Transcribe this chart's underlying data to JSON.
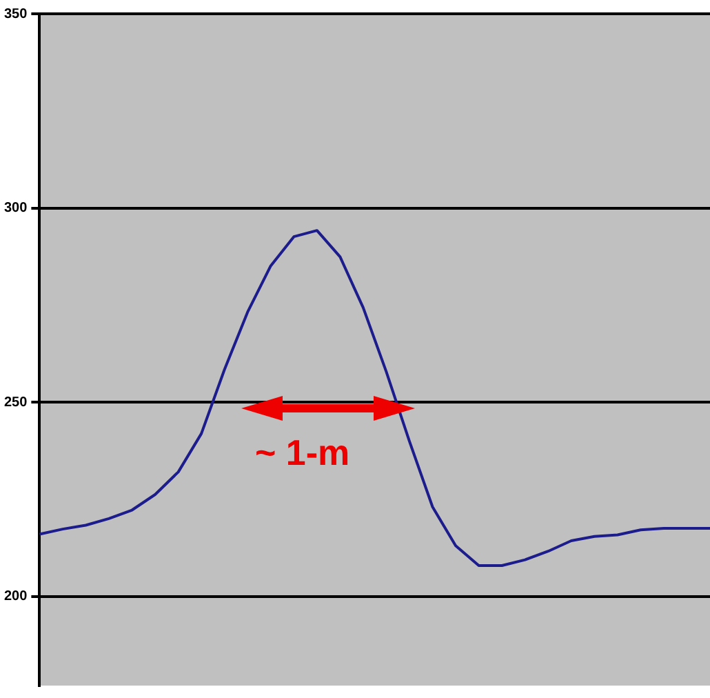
{
  "chart_data": {
    "type": "line",
    "categories": [
      null,
      null,
      null,
      null,
      null,
      null,
      null,
      null,
      null,
      null,
      null,
      null,
      null,
      null,
      null,
      null,
      null,
      null,
      null,
      null,
      null,
      null,
      null,
      null,
      null,
      null,
      null,
      null,
      null,
      null
    ],
    "series": [
      {
        "color": "#1c1c8c",
        "values": [
          216.0,
          217.3,
          218.3,
          220.0,
          222.2,
          226.2,
          232.0,
          241.9,
          258.4,
          273.2,
          285.1,
          292.6,
          294.2,
          287.4,
          274.3,
          257.8,
          239.9,
          223.0,
          213.0,
          207.9,
          207.9,
          209.4,
          211.6,
          214.3,
          215.4,
          215.8,
          217.1,
          217.5,
          217.5,
          217.5
        ]
      }
    ],
    "ylim": [
      177,
      350
    ],
    "yticks": [
      200,
      250,
      300,
      350
    ],
    "grid": "y",
    "legend": false,
    "marker": "none",
    "line_style": "solid",
    "tick_labels": "y",
    "annotations": [
      "~ 1-m"
    ]
  }
}
